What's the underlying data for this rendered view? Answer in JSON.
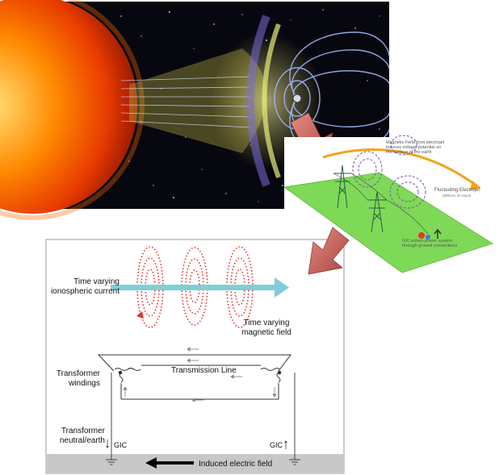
{
  "space_panel": {
    "colors": {
      "sun": "#ff5a00",
      "sun_core": "#ffd35a",
      "space": "#07070f",
      "field_lines": "#9fb8ff",
      "solar_wind": "#e8e46a"
    }
  },
  "electrojet_panel": {
    "magnetic_field_text": [
      "Magnetic Field from electrojet",
      "induces voltage potential on",
      "the surface of the earth"
    ],
    "electrojet_label": "Fluctuating Electrojet",
    "electrojet_sublabel": "(Millions of Amps)",
    "gic_text": [
      "GIC enters power system",
      "through ground connections"
    ],
    "colors": {
      "ground": "#7ed957",
      "loops": "#7b4fb0",
      "electrojet": "#f2a31a"
    }
  },
  "circuit_panel": {
    "ionospheric_label": [
      "Time varying",
      "ionospheric current"
    ],
    "magnetic_label": [
      "Time varying",
      "magnetic field"
    ],
    "transmission_line_label": "Transmission Line",
    "transformer_windings_label": [
      "Transformer",
      "windings"
    ],
    "transformer_neutral_label": [
      "Transformer",
      "neutral/earth"
    ],
    "gic_left": "GIC",
    "gic_right": "GIC",
    "induced_field_label": "Induced electric field",
    "colors": {
      "current_arrow": "#7ecfd6",
      "field_loops": "#e0302a",
      "ground_band": "#c8c8c8"
    }
  },
  "connector_arrows": {
    "color": "#c9605a"
  }
}
